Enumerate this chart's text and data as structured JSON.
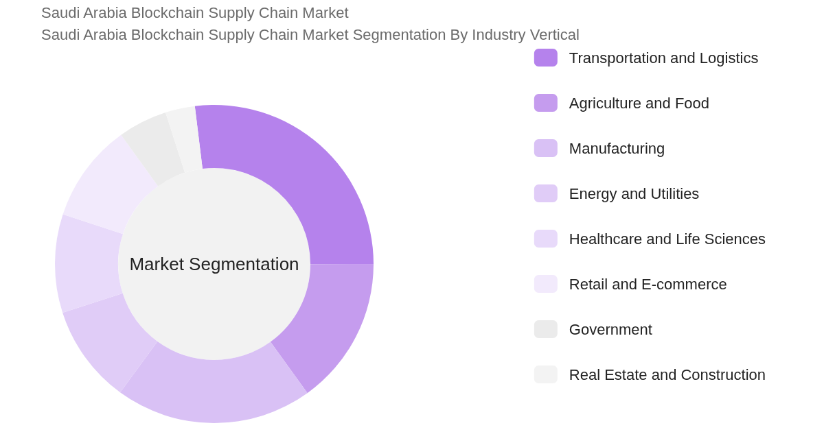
{
  "chart_data": {
    "type": "donut",
    "title": "Saudi Arabia Blockchain Supply Chain Market",
    "subtitle": "Saudi Arabia Blockchain Supply Chain Market Segmentation By Industry Vertical",
    "annotations": [
      "Market Segmentation"
    ],
    "categories": [
      "Transportation and Logistics",
      "Agriculture and Food",
      "Manufacturing",
      "Energy and Utilities",
      "Healthcare and Life Sciences",
      "Retail and E-commerce",
      "Government",
      "Real Estate and Construction"
    ],
    "values": [
      27,
      15,
      20,
      10,
      10,
      10,
      5,
      3
    ],
    "colors": [
      "#b582ec",
      "#c59cee",
      "#d9c1f5",
      "#e0ccf7",
      "#e8dafa",
      "#f2eafc",
      "#ebebeb",
      "#f3f3f3"
    ],
    "legend": "right"
  }
}
